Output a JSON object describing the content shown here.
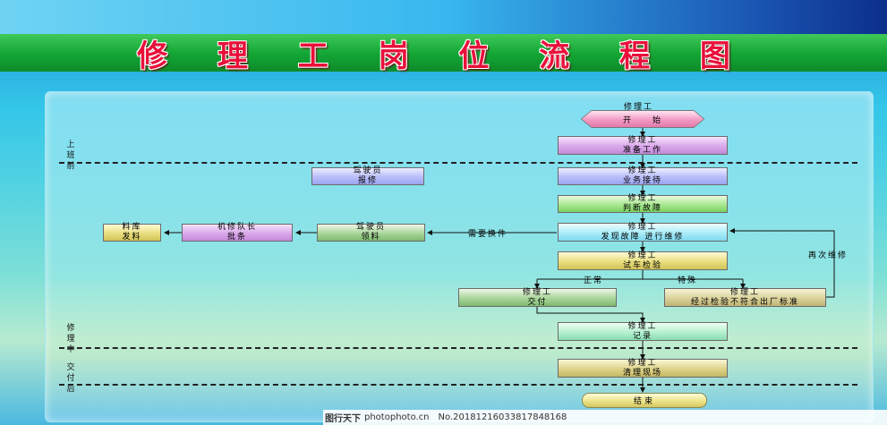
{
  "title": "修 理 工 岗 位 流 程 图",
  "phases": {
    "before": "上班前",
    "during": "修理中",
    "after": "交付后"
  },
  "nodes": {
    "start": {
      "role": "修理工",
      "text": "开　　始"
    },
    "prepare": {
      "role": "修理工",
      "text": "准备工作"
    },
    "reception": {
      "role": "修理工",
      "text": "业务接待"
    },
    "driver_report": {
      "role": "驾驶员",
      "text": "报修"
    },
    "diagnose": {
      "role": "修理工",
      "text": "判断故障"
    },
    "repair": {
      "role": "修理工",
      "text": "发现故障  进行维修"
    },
    "driver_pick": {
      "role": "驾驶员",
      "text": "领料"
    },
    "team_leader": {
      "role": "机修队长",
      "text": "批条"
    },
    "warehouse": {
      "role": "料库",
      "text": "发料"
    },
    "test": {
      "role": "修理工",
      "text": "试车检验"
    },
    "deliver": {
      "role": "修理工",
      "text": "交付"
    },
    "special": {
      "role": "修理工",
      "text": "经过检验不符合出厂标准"
    },
    "record": {
      "role": "修理工",
      "text": "记录"
    },
    "cleanup": {
      "role": "修理工",
      "text": "清理现场"
    },
    "end": {
      "text": "结束"
    }
  },
  "edge_labels": {
    "need_parts": "需要换件",
    "normal": "正常",
    "special": "特殊",
    "rework": "再次维修"
  },
  "footer": {
    "logo": "图行天下",
    "domain": "photophoto.cn",
    "id": "No.20181216033817848168"
  }
}
